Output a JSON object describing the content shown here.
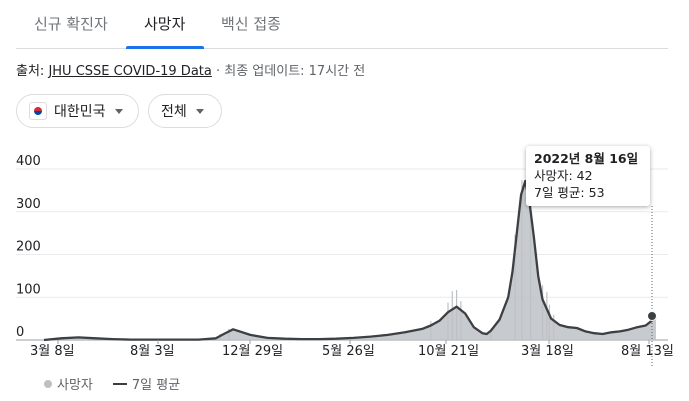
{
  "tabs": [
    "신규 확진자",
    "사망자",
    "백신 접종"
  ],
  "source": {
    "prefix": "출처: ",
    "link": "JHU CSSE COVID-19 Data",
    "suffix": " · 최종 업데이트: 17시간 전"
  },
  "filters": {
    "region": "대한민국",
    "range": "전체"
  },
  "tooltip": {
    "date": "2022년 8월 16일",
    "deaths": "사망자: 42",
    "avg": "7일 평균: 53"
  },
  "legend": {
    "deaths": "사망자",
    "avg": "7일 평균"
  },
  "colors": {
    "accent": "#1a73e8",
    "bars": "#bdc1c6",
    "line": "#3c4043"
  },
  "chart_data": {
    "type": "area",
    "y_ticks": [
      "400",
      "300",
      "200",
      "100",
      "0"
    ],
    "x_ticks": [
      "3월 8일",
      "8월 3일",
      "12월 29일",
      "5월 26일",
      "10월 21일",
      "3월 18일",
      "8월 13일"
    ],
    "ylim": [
      0,
      400
    ],
    "series": [
      {
        "name": "7일 평균",
        "x": [
          0,
          20,
          40,
          60,
          80,
          100,
          120,
          140,
          160,
          180,
          200,
          210,
          220,
          240,
          260,
          280,
          300,
          320,
          340,
          360,
          380,
          400,
          420,
          440,
          450,
          460,
          470,
          480,
          490,
          500,
          510,
          515,
          520,
          530,
          540,
          545,
          550,
          555,
          560,
          565,
          570,
          575,
          580,
          590,
          600,
          610,
          620,
          630,
          640,
          650,
          660,
          670,
          680,
          690,
          700,
          712
        ],
        "values": [
          0,
          4,
          6,
          4,
          2,
          1,
          1,
          1,
          1,
          1,
          4,
          15,
          25,
          12,
          5,
          3,
          2,
          2,
          3,
          5,
          8,
          12,
          18,
          26,
          34,
          45,
          65,
          78,
          62,
          30,
          16,
          14,
          22,
          48,
          100,
          160,
          250,
          340,
          372,
          320,
          240,
          150,
          95,
          50,
          35,
          30,
          28,
          20,
          16,
          14,
          18,
          20,
          24,
          30,
          34,
          53
        ]
      }
    ]
  }
}
